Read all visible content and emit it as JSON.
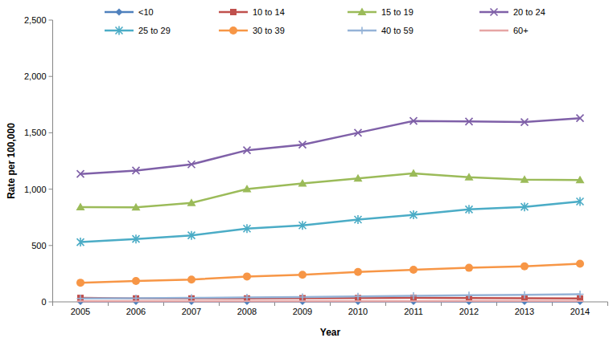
{
  "chart_data": {
    "type": "line",
    "x_label": "Year",
    "y_label": "Rate per 100,000",
    "categories": [
      "2005",
      "2006",
      "2007",
      "2008",
      "2009",
      "2010",
      "2011",
      "2012",
      "2013",
      "2014"
    ],
    "ylim": [
      0,
      2500
    ],
    "yticks": [
      0,
      500,
      {
        "value": 1000,
        "label": "1,000"
      },
      {
        "value": 1500,
        "label": "1,500"
      },
      {
        "value": 2000,
        "label": "2,000"
      },
      {
        "value": 2500,
        "label": "2,500"
      }
    ],
    "grid": false,
    "legend": "top",
    "series": [
      {
        "name": "<10",
        "color": "#4f81bd",
        "marker": "diamond",
        "values": [
          3,
          3,
          3,
          3,
          3,
          3,
          3,
          3,
          3,
          3
        ]
      },
      {
        "name": "10 to 14",
        "color": "#c0504d",
        "marker": "square",
        "values": [
          35,
          30,
          30,
          30,
          32,
          33,
          35,
          33,
          32,
          30
        ]
      },
      {
        "name": "15 to 19",
        "color": "#9bbb59",
        "marker": "triangle",
        "values": [
          840,
          838,
          878,
          1000,
          1050,
          1095,
          1140,
          1105,
          1085,
          1080
        ]
      },
      {
        "name": "20 to 24",
        "color": "#7f60a8",
        "marker": "x",
        "values": [
          1135,
          1165,
          1220,
          1345,
          1395,
          1500,
          1605,
          1600,
          1595,
          1630
        ]
      },
      {
        "name": "25 to 29",
        "color": "#4bacc6",
        "marker": "star",
        "values": [
          530,
          558,
          590,
          650,
          678,
          730,
          772,
          820,
          843,
          890
        ]
      },
      {
        "name": "30 to 39",
        "color": "#f79646",
        "marker": "circle",
        "values": [
          170,
          185,
          198,
          225,
          240,
          265,
          285,
          302,
          315,
          338
        ]
      },
      {
        "name": "40 to 59",
        "color": "#95b3d7",
        "marker": "plus",
        "values": [
          30,
          32,
          35,
          40,
          43,
          48,
          53,
          58,
          62,
          68
        ]
      },
      {
        "name": "60+",
        "color": "#e6a5a4",
        "marker": "dash",
        "values": [
          5,
          5,
          5,
          6,
          6,
          6,
          6,
          7,
          7,
          7
        ]
      }
    ]
  }
}
